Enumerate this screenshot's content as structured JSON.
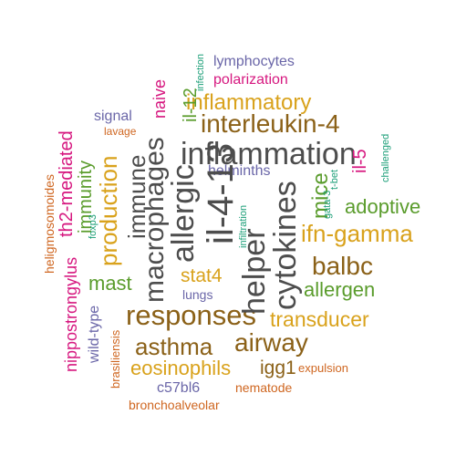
{
  "colors": {
    "gray": "#4d4d4d",
    "brown": "#8b6118",
    "gold": "#d9a21c",
    "green": "#5a9c2c",
    "purple": "#6a66a8",
    "magenta": "#d6177f",
    "orange": "#cf6620",
    "teal": "#1a9e77"
  },
  "words": [
    {
      "text": "inflammation",
      "color": "gray"
    },
    {
      "text": "il-4-13",
      "color": "gray"
    },
    {
      "text": "allergic",
      "color": "gray"
    },
    {
      "text": "macrophages",
      "color": "gray"
    },
    {
      "text": "helper",
      "color": "gray"
    },
    {
      "text": "cytokines",
      "color": "gray"
    },
    {
      "text": "immune",
      "color": "gray"
    },
    {
      "text": "interleukin-4",
      "color": "brown"
    },
    {
      "text": "responses",
      "color": "brown"
    },
    {
      "text": "asthma",
      "color": "brown"
    },
    {
      "text": "airway",
      "color": "brown"
    },
    {
      "text": "balbc",
      "color": "brown"
    },
    {
      "text": "igg1",
      "color": "brown"
    },
    {
      "text": "inflammatory",
      "color": "gold"
    },
    {
      "text": "ifn-gamma",
      "color": "gold"
    },
    {
      "text": "production",
      "color": "gold"
    },
    {
      "text": "stat4",
      "color": "gold"
    },
    {
      "text": "transducer",
      "color": "gold"
    },
    {
      "text": "eosinophils",
      "color": "gold"
    },
    {
      "text": "mast",
      "color": "green"
    },
    {
      "text": "immunity",
      "color": "green"
    },
    {
      "text": "adoptive",
      "color": "green"
    },
    {
      "text": "allergen",
      "color": "green"
    },
    {
      "text": "mice",
      "color": "green"
    },
    {
      "text": "il-12",
      "color": "green"
    },
    {
      "text": "helminths",
      "color": "purple"
    },
    {
      "text": "signal",
      "color": "purple"
    },
    {
      "text": "lungs",
      "color": "purple"
    },
    {
      "text": "wild-type",
      "color": "purple"
    },
    {
      "text": "c57bl6",
      "color": "purple"
    },
    {
      "text": "lymphocytes",
      "color": "purple"
    },
    {
      "text": "naive",
      "color": "magenta"
    },
    {
      "text": "th2-mediated",
      "color": "magenta"
    },
    {
      "text": "nippostrongylus",
      "color": "magenta"
    },
    {
      "text": "il-5",
      "color": "magenta"
    },
    {
      "text": "polarization",
      "color": "magenta"
    },
    {
      "text": "lavage",
      "color": "orange"
    },
    {
      "text": "heligmosomoides",
      "color": "orange"
    },
    {
      "text": "brasiliensis",
      "color": "orange"
    },
    {
      "text": "bronchoalveolar",
      "color": "orange"
    },
    {
      "text": "nematode",
      "color": "orange"
    },
    {
      "text": "expulsion",
      "color": "orange"
    },
    {
      "text": "infection",
      "color": "teal"
    },
    {
      "text": "foxp3",
      "color": "teal"
    },
    {
      "text": "infiltration",
      "color": "teal"
    },
    {
      "text": "gata-3",
      "color": "teal"
    },
    {
      "text": "t-bet",
      "color": "teal"
    },
    {
      "text": "challenged",
      "color": "teal"
    }
  ]
}
